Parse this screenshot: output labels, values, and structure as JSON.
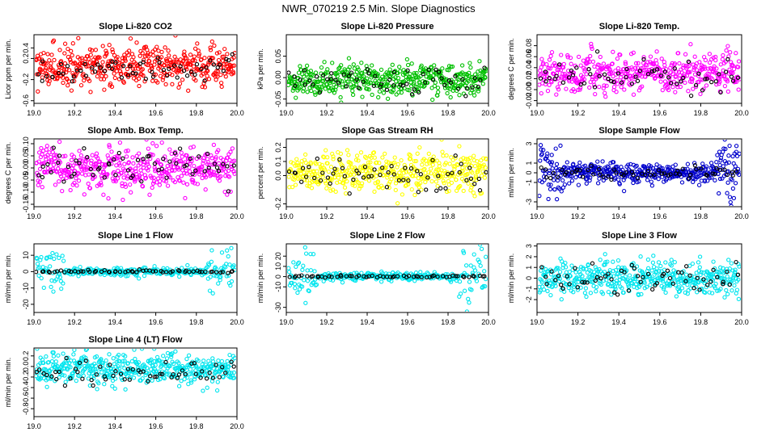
{
  "figure": {
    "title": "NWR_070219  2.5 Min. Slope Diagnostics"
  },
  "chart_data": [
    {
      "type": "scatter",
      "title": "Slope Li-820 CO2",
      "xlabel": "",
      "ylabel": "Licor ppm per min.",
      "xlim": [
        19.0,
        20.0
      ],
      "ylim": [
        -0.65,
        0.65
      ],
      "x_ticks": [
        "19.0",
        "19.2",
        "19.4",
        "19.6",
        "19.8",
        "20.0"
      ],
      "y_ticks": [
        "-0.6",
        "-0.2",
        "0.2",
        "0.4"
      ],
      "y_tick_values": [
        -0.6,
        -0.2,
        0.2,
        0.4
      ],
      "grid": false,
      "series": [
        {
          "name": "all",
          "color": "#ff0000",
          "n": 450,
          "center": 0.05,
          "sd": 0.18,
          "note": "dense band of points across full day"
        },
        {
          "name": "selected",
          "color": "#000000",
          "n": 60,
          "center": 0.0,
          "sd": 0.15
        }
      ]
    },
    {
      "type": "scatter",
      "title": "Slope Li-820 Pressure",
      "xlabel": "",
      "ylabel": "kPa per min.",
      "xlim": [
        19.0,
        20.0
      ],
      "ylim": [
        -0.06,
        0.1
      ],
      "x_ticks": [
        "19.0",
        "19.2",
        "19.4",
        "19.6",
        "19.8",
        "20.0"
      ],
      "y_ticks": [
        "-0.05",
        "0.00",
        "0.05"
      ],
      "y_tick_values": [
        -0.05,
        0.0,
        0.05
      ],
      "grid": false,
      "series": [
        {
          "name": "all",
          "color": "#00c000",
          "n": 450,
          "center": -0.005,
          "sd": 0.018
        },
        {
          "name": "selected",
          "color": "#000000",
          "n": 60,
          "center": -0.01,
          "sd": 0.015
        }
      ]
    },
    {
      "type": "scatter",
      "title": "Slope Li-820 Temp.",
      "xlabel": "",
      "ylabel": "degrees C per min.",
      "xlim": [
        19.0,
        20.0
      ],
      "ylim": [
        -0.025,
        0.1
      ],
      "x_ticks": [
        "19.0",
        "19.2",
        "19.4",
        "19.6",
        "19.8",
        "20.0"
      ],
      "y_ticks": [
        "-0.02",
        "0.00",
        "0.02",
        "0.04",
        "0.06",
        "0.08"
      ],
      "y_tick_values": [
        -0.02,
        0.0,
        0.02,
        0.04,
        0.06,
        0.08
      ],
      "grid": false,
      "series": [
        {
          "name": "all",
          "color": "#ff00ff",
          "n": 450,
          "center": 0.03,
          "sd": 0.018
        },
        {
          "name": "selected",
          "color": "#000000",
          "n": 60,
          "center": 0.02,
          "sd": 0.015
        }
      ]
    },
    {
      "type": "scatter",
      "title": "Slope Amb. Box Temp.",
      "xlabel": "",
      "ylabel": "degrees C per min.",
      "xlim": [
        19.0,
        20.0
      ],
      "ylim": [
        -0.16,
        0.12
      ],
      "x_ticks": [
        "19.0",
        "19.2",
        "19.4",
        "19.6",
        "19.8",
        "20.0"
      ],
      "y_ticks": [
        "-0.15",
        "-0.10",
        "-0.05",
        "0.00",
        "0.05",
        "0.10"
      ],
      "y_tick_values": [
        -0.15,
        -0.1,
        -0.05,
        0.0,
        0.05,
        0.1
      ],
      "grid": false,
      "series": [
        {
          "name": "all",
          "color": "#ff00ff",
          "n": 450,
          "center": 0.0,
          "sd": 0.045
        },
        {
          "name": "selected",
          "color": "#000000",
          "n": 60,
          "center": 0.0,
          "sd": 0.035
        }
      ]
    },
    {
      "type": "scatter",
      "title": "Slope Gas Stream RH",
      "xlabel": "",
      "ylabel": "percent per min.",
      "xlim": [
        19.0,
        20.0
      ],
      "ylim": [
        -0.22,
        0.26
      ],
      "x_ticks": [
        "19.0",
        "19.2",
        "19.4",
        "19.6",
        "19.8",
        "20.0"
      ],
      "y_ticks": [
        "-0.2",
        "0.0",
        "0.1",
        "0.2"
      ],
      "y_tick_values": [
        -0.2,
        0.0,
        0.1,
        0.2
      ],
      "grid": false,
      "series": [
        {
          "name": "all",
          "color": "#ffff00",
          "n": 450,
          "center": 0.02,
          "sd": 0.07
        },
        {
          "name": "selected",
          "color": "#000000",
          "n": 60,
          "center": 0.0,
          "sd": 0.06
        }
      ]
    },
    {
      "type": "scatter",
      "title": "Slope Sample Flow",
      "xlabel": "",
      "ylabel": "ml/min per min.",
      "xlim": [
        19.0,
        20.0
      ],
      "ylim": [
        -3.5,
        3.5
      ],
      "x_ticks": [
        "19.0",
        "19.2",
        "19.4",
        "19.6",
        "19.8",
        "20.0"
      ],
      "y_ticks": [
        "-3",
        "-1",
        "0",
        "1",
        "3"
      ],
      "y_tick_values": [
        -3,
        -1,
        0,
        1,
        3
      ],
      "grid": false,
      "series": [
        {
          "name": "all",
          "color": "#0000cc",
          "n": 450,
          "center": 0.0,
          "sd": 0.55,
          "note": "tight band with scattered outliers near the ends"
        },
        {
          "name": "selected",
          "color": "#000000",
          "n": 60,
          "center": 0.0,
          "sd": 0.3
        }
      ]
    },
    {
      "type": "scatter",
      "title": "Slope Line 1 Flow",
      "xlabel": "",
      "ylabel": "ml/min per min.",
      "xlim": [
        19.0,
        20.0
      ],
      "ylim": [
        -25,
        17
      ],
      "x_ticks": [
        "19.0",
        "19.2",
        "19.4",
        "19.6",
        "19.8",
        "20.0"
      ],
      "y_ticks": [
        "-20",
        "-10",
        "0",
        "10"
      ],
      "y_tick_values": [
        -20,
        -10,
        0,
        10
      ],
      "grid": false,
      "series": [
        {
          "name": "all",
          "color": "#00e5ee",
          "n": 300,
          "center": 0.0,
          "sd": 1.2,
          "note": "wide spread near 19.0 and 19.9"
        },
        {
          "name": "selected",
          "color": "#000000",
          "n": 60,
          "center": 0.0,
          "sd": 0.4
        }
      ]
    },
    {
      "type": "scatter",
      "title": "Slope Line 2 Flow",
      "xlabel": "",
      "ylabel": "ml/min per min.",
      "xlim": [
        19.0,
        20.0
      ],
      "ylim": [
        -35,
        32
      ],
      "x_ticks": [
        "19.0",
        "19.2",
        "19.4",
        "19.6",
        "19.8",
        "20.0"
      ],
      "y_ticks": [
        "-30",
        "-10",
        "0",
        "10",
        "20"
      ],
      "y_tick_values": [
        -30,
        -10,
        0,
        10,
        20
      ],
      "grid": false,
      "series": [
        {
          "name": "all",
          "color": "#00e5ee",
          "n": 300,
          "center": 0.0,
          "sd": 2.0,
          "note": "wide spread near 19.0 and 19.9"
        },
        {
          "name": "selected",
          "color": "#000000",
          "n": 60,
          "center": 0.0,
          "sd": 0.6
        }
      ]
    },
    {
      "type": "scatter",
      "title": "Slope Line 3 Flow",
      "xlabel": "",
      "ylabel": "ml/min per min.",
      "xlim": [
        19.0,
        20.0
      ],
      "ylim": [
        -3.2,
        3.2
      ],
      "x_ticks": [
        "19.0",
        "19.2",
        "19.4",
        "19.6",
        "19.8",
        "20.0"
      ],
      "y_ticks": [
        "-2",
        "-1",
        "0",
        "1",
        "2",
        "3"
      ],
      "y_tick_values": [
        -2,
        -1,
        0,
        1,
        2,
        3
      ],
      "grid": false,
      "series": [
        {
          "name": "all",
          "color": "#00e5ee",
          "n": 450,
          "center": 0.0,
          "sd": 0.8
        },
        {
          "name": "selected",
          "color": "#000000",
          "n": 60,
          "center": -0.2,
          "sd": 0.7
        }
      ]
    },
    {
      "type": "scatter",
      "title": "Slope Line 4 (LT) Flow",
      "xlabel": "",
      "ylabel": "ml/min per min.",
      "xlim": [
        19.0,
        20.0
      ],
      "ylim": [
        -0.95,
        0.35
      ],
      "x_ticks": [
        "19.0",
        "19.2",
        "19.4",
        "19.6",
        "19.8",
        "20.0"
      ],
      "y_ticks": [
        "-0.8",
        "-0.6",
        "-0.4",
        "-0.2",
        "0.0",
        "0.2"
      ],
      "y_tick_values": [
        -0.8,
        -0.6,
        -0.4,
        -0.2,
        0.0,
        0.2
      ],
      "grid": false,
      "series": [
        {
          "name": "all",
          "color": "#00e5ee",
          "n": 450,
          "center": -0.05,
          "sd": 0.15
        },
        {
          "name": "selected",
          "color": "#000000",
          "n": 60,
          "center": -0.1,
          "sd": 0.12
        }
      ]
    }
  ]
}
